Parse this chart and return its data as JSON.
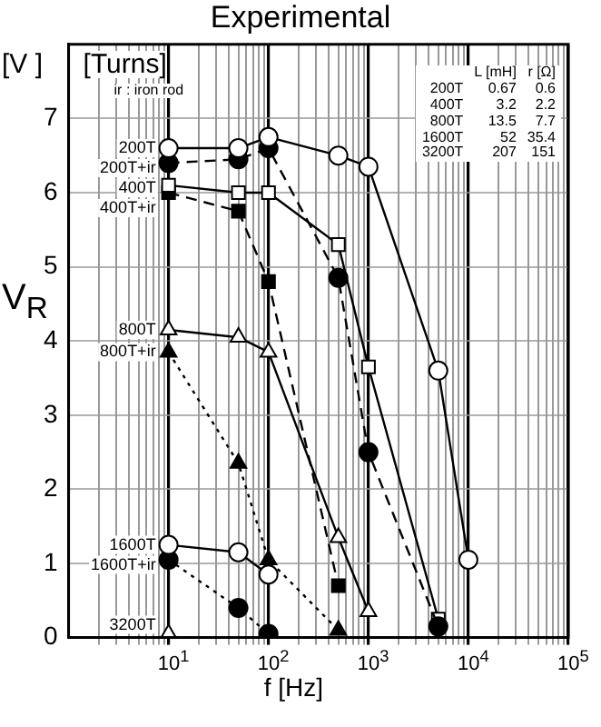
{
  "chart_data": {
    "type": "line",
    "title": "Experimental",
    "xlabel": "f  [Hz]",
    "ylabel": "V$_{R}$",
    "log": "x",
    "grid": true,
    "legend": "left",
    "xlim": [
      1,
      100000
    ],
    "ylim": [
      0,
      8
    ],
    "xticks": [
      {
        "value": 2,
        "label": null
      },
      {
        "value": 3,
        "label": null
      },
      {
        "value": 4,
        "label": null
      },
      {
        "value": 5,
        "label": null
      },
      {
        "value": 6,
        "label": null
      },
      {
        "value": 7,
        "label": null
      },
      {
        "value": 8,
        "label": null
      },
      {
        "value": 9,
        "label": null
      },
      {
        "value": 10,
        "label": "10$^{1}$"
      },
      {
        "value": 20,
        "label": null
      },
      {
        "value": 30,
        "label": null
      },
      {
        "value": 40,
        "label": null
      },
      {
        "value": 50,
        "label": null
      },
      {
        "value": 60,
        "label": null
      },
      {
        "value": 70,
        "label": null
      },
      {
        "value": 80,
        "label": null
      },
      {
        "value": 90,
        "label": null
      },
      {
        "value": 100,
        "label": "10$^{2}$"
      },
      {
        "value": 200,
        "label": null
      },
      {
        "value": 300,
        "label": null
      },
      {
        "value": 400,
        "label": null
      },
      {
        "value": 500,
        "label": null
      },
      {
        "value": 600,
        "label": null
      },
      {
        "value": 700,
        "label": null
      },
      {
        "value": 800,
        "label": null
      },
      {
        "value": 900,
        "label": null
      },
      {
        "value": 1000,
        "label": "10$^{3}$"
      },
      {
        "value": 2000,
        "label": null
      },
      {
        "value": 3000,
        "label": null
      },
      {
        "value": 4000,
        "label": null
      },
      {
        "value": 5000,
        "label": null
      },
      {
        "value": 6000,
        "label": null
      },
      {
        "value": 7000,
        "label": null
      },
      {
        "value": 8000,
        "label": null
      },
      {
        "value": 9000,
        "label": null
      },
      {
        "value": 10000,
        "label": "10$^{4}$"
      },
      {
        "value": 20000,
        "label": null
      },
      {
        "value": 30000,
        "label": null
      },
      {
        "value": 40000,
        "label": null
      },
      {
        "value": 50000,
        "label": null
      },
      {
        "value": 60000,
        "label": null
      },
      {
        "value": 70000,
        "label": null
      },
      {
        "value": 80000,
        "label": null
      },
      {
        "value": 90000,
        "label": null
      },
      {
        "value": 100000,
        "label": "10$^{5}$"
      }
    ],
    "yticks": [
      0,
      1,
      2,
      3,
      4,
      5,
      6,
      7
    ],
    "annotations": [
      "[V ]",
      "[Turns]",
      "ir : iron rod",
      "L [mH]",
      "r [Ω]",
      "200T",
      "0.67",
      "0.6",
      "400T",
      "3.2",
      "2.2",
      "800T",
      "13.5",
      "7.7",
      "1600T",
      "52",
      "35.4",
      "3200T",
      "207",
      "151"
    ],
    "series": [
      {
        "name": "200T",
        "color": "#000000",
        "colors": [
          "#ffffff",
          "#ffffff",
          "#ffffff",
          "#ffffff",
          "#ffffff",
          "#ffffff",
          "#ffffff"
        ],
        "marker": "circle",
        "line_style": "solid",
        "x": [
          10,
          50,
          100,
          500,
          1000,
          5000,
          10000
        ],
        "values": [
          6.6,
          6.6,
          6.75,
          6.5,
          6.35,
          3.6,
          1.05
        ]
      },
      {
        "name": "200T+ir",
        "color": "#000000",
        "marker": "circle",
        "line_style": "dashed",
        "x": [
          10,
          50,
          100,
          500,
          1000,
          5000
        ],
        "values": [
          6.4,
          6.45,
          6.6,
          4.85,
          2.5,
          0.15
        ]
      },
      {
        "name": "400T",
        "color": "#000000",
        "colors": [
          "#ffffff",
          "#ffffff",
          "#ffffff",
          "#ffffff",
          "#ffffff",
          "#ffffff"
        ],
        "marker": "square",
        "line_style": "solid",
        "x": [
          10,
          50,
          100,
          500,
          1000,
          5000
        ],
        "values": [
          6.1,
          6.0,
          6.0,
          5.3,
          3.65,
          0.25
        ]
      },
      {
        "name": "400T+ir",
        "color": "#000000",
        "marker": "square",
        "line_style": "dashed",
        "x": [
          10,
          50,
          100,
          500
        ],
        "values": [
          6.0,
          5.75,
          4.8,
          0.7
        ]
      },
      {
        "name": "800T",
        "color": "#000000",
        "colors": [
          "#ffffff",
          "#ffffff",
          "#ffffff",
          "#ffffff",
          "#ffffff"
        ],
        "marker": "triangle",
        "line_style": "solid",
        "x": [
          10,
          50,
          100,
          500,
          1000
        ],
        "values": [
          4.15,
          4.05,
          3.85,
          1.35,
          0.35
        ]
      },
      {
        "name": "800T+ir",
        "color": "#000000",
        "marker": "triangle",
        "line_style": "dotted",
        "x": [
          10,
          50,
          100,
          500
        ],
        "values": [
          3.85,
          2.35,
          1.05,
          0.1
        ]
      },
      {
        "name": "1600T",
        "color": "#000000",
        "colors": [
          "#ffffff",
          "#ffffff",
          "#ffffff"
        ],
        "marker": "circle",
        "line_style": "solid",
        "x": [
          10,
          50,
          100
        ],
        "values": [
          1.25,
          1.15,
          0.85
        ]
      },
      {
        "name": "1600T+ir",
        "color": "#000000",
        "marker": "circle",
        "line_style": "dotted",
        "x": [
          10,
          50,
          100
        ],
        "values": [
          1.05,
          0.4,
          0.05
        ]
      },
      {
        "name": "3200T",
        "color": "#000000",
        "colors": [
          "#ffffff"
        ],
        "marker": "triangle",
        "x": [
          10
        ],
        "values": [
          0.05
        ]
      }
    ]
  }
}
